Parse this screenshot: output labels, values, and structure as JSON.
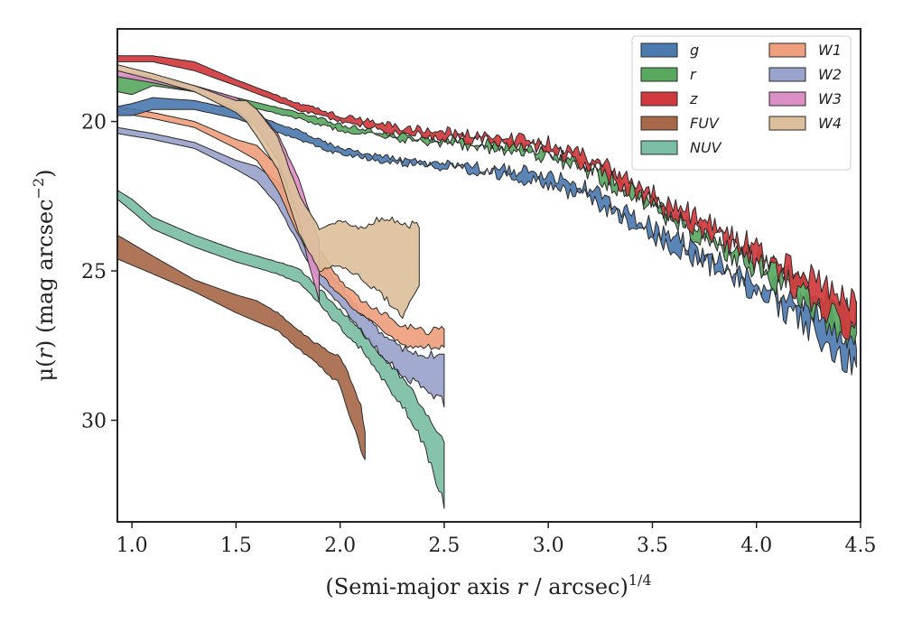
{
  "chart_data": {
    "type": "area",
    "xlabel": {
      "main": "(Semi-major axis ",
      "var": "r",
      "mid": " / arcsec)",
      "sup": "1/4"
    },
    "ylabel": {
      "mu": "μ(",
      "var": "r",
      "close": ")",
      "rest": " (mag arcsec",
      "sup": "−2",
      "end": ")"
    },
    "xlim": [
      0.93,
      4.5
    ],
    "ylim": [
      33.4,
      16.9
    ],
    "y_inverted": true,
    "xticks": [
      1.0,
      1.5,
      2.0,
      2.5,
      3.0,
      3.5,
      4.0,
      4.5
    ],
    "xtick_labels": [
      "1.0",
      "1.5",
      "2.0",
      "2.5",
      "3.0",
      "3.5",
      "4.0",
      "4.5"
    ],
    "yticks": [
      20,
      25,
      30
    ],
    "ytick_labels": [
      "20",
      "25",
      "30"
    ],
    "grid": false,
    "legend_position": "top-right",
    "legend_columns": 2,
    "series": [
      {
        "name": "g",
        "color": "#4c7bb0",
        "x": [
          0.93,
          1.0,
          1.1,
          1.3,
          1.5,
          1.8,
          2.0,
          2.3,
          2.6,
          2.8,
          3.0,
          3.2,
          3.4,
          3.6,
          3.8,
          4.0,
          4.2,
          4.3,
          4.4,
          4.48
        ],
        "lo": [
          19.5,
          19.4,
          19.2,
          19.3,
          19.6,
          20.3,
          20.9,
          21.3,
          21.5,
          21.6,
          21.8,
          22.3,
          23.1,
          23.9,
          24.6,
          25.3,
          26.0,
          26.4,
          26.9,
          27.3
        ],
        "hi": [
          19.8,
          19.8,
          19.6,
          19.6,
          19.9,
          20.6,
          21.1,
          21.4,
          21.6,
          21.8,
          22.1,
          22.6,
          23.4,
          24.2,
          24.9,
          25.7,
          26.6,
          27.2,
          27.8,
          28.1
        ]
      },
      {
        "name": "r",
        "color": "#59a85f",
        "x": [
          0.93,
          1.0,
          1.1,
          1.3,
          1.5,
          1.8,
          2.0,
          2.3,
          2.6,
          2.8,
          3.0,
          3.2,
          3.4,
          3.6,
          3.8,
          4.0,
          4.2,
          4.3,
          4.4,
          4.48
        ],
        "lo": [
          18.5,
          18.5,
          18.6,
          18.8,
          19.2,
          19.7,
          20.1,
          20.5,
          20.7,
          20.8,
          21.0,
          21.5,
          22.3,
          23.1,
          23.8,
          24.6,
          25.3,
          25.8,
          26.2,
          26.5
        ],
        "hi": [
          19.0,
          19.1,
          18.8,
          19.0,
          19.4,
          19.9,
          20.3,
          20.6,
          20.8,
          21.0,
          21.2,
          21.7,
          22.5,
          23.3,
          24.1,
          24.9,
          25.9,
          26.6,
          27.1,
          27.5
        ]
      },
      {
        "name": "z",
        "color": "#d0393d",
        "x": [
          0.93,
          1.0,
          1.1,
          1.3,
          1.5,
          1.8,
          2.0,
          2.3,
          2.6,
          2.8,
          3.0,
          3.2,
          3.4,
          3.6,
          3.8,
          4.0,
          4.2,
          4.3,
          4.4,
          4.48
        ],
        "lo": [
          17.8,
          17.8,
          17.8,
          18.0,
          18.6,
          19.4,
          19.8,
          20.2,
          20.4,
          20.5,
          20.7,
          21.2,
          22.0,
          22.8,
          23.5,
          24.2,
          25.0,
          25.4,
          25.8,
          26.0
        ],
        "hi": [
          18.0,
          18.0,
          18.0,
          18.3,
          18.8,
          19.6,
          20.0,
          20.4,
          20.6,
          20.7,
          20.9,
          21.5,
          22.3,
          23.1,
          23.8,
          24.7,
          25.6,
          26.1,
          26.6,
          27.2
        ]
      },
      {
        "name": "FUV",
        "color": "#a8694a",
        "x": [
          0.93,
          1.1,
          1.3,
          1.5,
          1.6,
          1.7,
          1.8,
          1.9,
          2.0,
          2.05,
          2.1,
          2.12
        ],
        "lo": [
          23.8,
          24.5,
          25.3,
          25.8,
          26.0,
          26.4,
          27.0,
          27.5,
          27.9,
          28.6,
          29.5,
          30.4
        ],
        "hi": [
          24.6,
          25.1,
          25.7,
          26.4,
          26.7,
          27.0,
          27.6,
          28.2,
          28.8,
          29.9,
          31.0,
          31.4
        ]
      },
      {
        "name": "NUV",
        "color": "#7bbfa4",
        "x": [
          0.93,
          1.0,
          1.1,
          1.3,
          1.5,
          1.7,
          1.8,
          1.9,
          2.0,
          2.1,
          2.2,
          2.3,
          2.4,
          2.5
        ],
        "lo": [
          22.3,
          22.6,
          23.2,
          23.8,
          24.3,
          24.7,
          24.9,
          25.6,
          26.3,
          27.0,
          27.8,
          28.6,
          29.6,
          30.8
        ],
        "hi": [
          22.6,
          23.0,
          23.6,
          24.2,
          24.7,
          25.1,
          25.4,
          26.1,
          26.9,
          27.6,
          28.6,
          29.5,
          30.8,
          32.8
        ]
      },
      {
        "name": "W1",
        "color": "#ef9f7d",
        "x": [
          0.93,
          1.1,
          1.3,
          1.5,
          1.6,
          1.7,
          1.8,
          1.9,
          2.0,
          2.1,
          2.2,
          2.3,
          2.4,
          2.5
        ],
        "lo": [
          19.5,
          19.7,
          20.0,
          20.6,
          20.8,
          21.5,
          22.8,
          24.3,
          25.3,
          26.0,
          26.4,
          26.8,
          27.0,
          27.0
        ],
        "hi": [
          19.7,
          19.9,
          20.2,
          20.9,
          21.3,
          22.3,
          23.8,
          25.1,
          25.8,
          26.5,
          27.0,
          27.4,
          27.6,
          27.6
        ]
      },
      {
        "name": "W2",
        "color": "#9aa3cc",
        "x": [
          0.93,
          1.1,
          1.3,
          1.5,
          1.6,
          1.7,
          1.8,
          1.9,
          2.0,
          2.1,
          2.2,
          2.3,
          2.4,
          2.5
        ],
        "lo": [
          20.2,
          20.4,
          20.7,
          21.3,
          21.5,
          22.0,
          23.1,
          24.6,
          25.5,
          26.4,
          27.1,
          27.6,
          27.9,
          27.7
        ],
        "hi": [
          20.4,
          20.6,
          20.9,
          21.6,
          22.0,
          22.8,
          24.1,
          25.4,
          26.1,
          27.0,
          27.8,
          28.5,
          28.9,
          29.4
        ]
      },
      {
        "name": "W3",
        "color": "#dc8fc4",
        "x": [
          0.93,
          1.1,
          1.3,
          1.5,
          1.6,
          1.7,
          1.8,
          1.85,
          1.9
        ],
        "lo": [
          18.3,
          18.5,
          18.8,
          19.2,
          19.6,
          20.4,
          21.9,
          23.0,
          24.0
        ],
        "hi": [
          18.5,
          18.7,
          19.0,
          19.6,
          20.2,
          21.3,
          23.2,
          24.8,
          26.0
        ]
      },
      {
        "name": "W4",
        "color": "#dcc09c",
        "x": [
          0.93,
          1.1,
          1.3,
          1.5,
          1.55,
          1.6,
          1.7,
          1.8,
          1.9,
          2.0,
          2.1,
          2.2,
          2.3,
          2.38
        ],
        "lo": [
          18.1,
          18.4,
          18.8,
          19.3,
          19.3,
          19.6,
          20.5,
          22.4,
          23.6,
          23.3,
          23.6,
          23.2,
          23.4,
          23.5
        ],
        "hi": [
          18.3,
          18.6,
          19.0,
          19.7,
          20.0,
          20.5,
          21.6,
          23.7,
          25.0,
          24.8,
          25.2,
          25.8,
          26.5,
          25.5
        ]
      }
    ]
  }
}
